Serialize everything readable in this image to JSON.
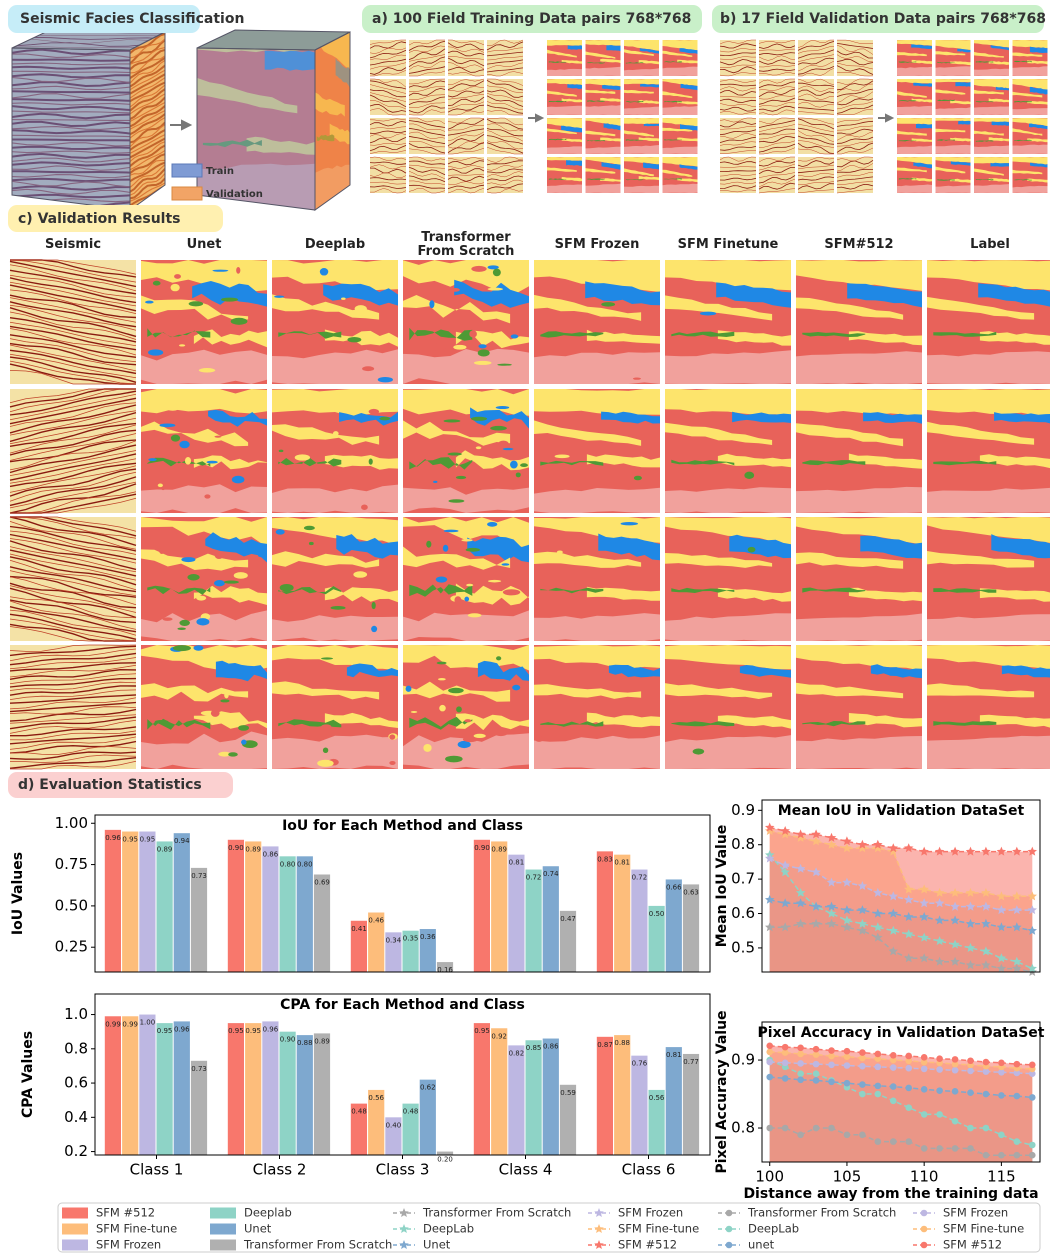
{
  "panels": {
    "facies": "Seismic Facies Classification",
    "training": "a) 100 Field Training Data pairs 768*768",
    "validation": "b) 17  Field Validation Data pairs 768*768",
    "results": "c) Validation Results",
    "statistics": "d) Evaluation Statistics"
  },
  "cube_legend": {
    "train": "Train",
    "validation": "Validation"
  },
  "columns": [
    "Seismic",
    "Unet",
    "Deeplab",
    "Transformer From Scratch",
    "SFM Frozen",
    "SFM Finetune",
    "SFM#512",
    "Label"
  ],
  "chart_data": [
    {
      "type": "bar",
      "title": "IoU for Each Method and Class",
      "ylabel": "IoU Values",
      "ylim": [
        0.1,
        1.05
      ],
      "yticks": [
        0.25,
        {
          "value": 0.5,
          "label": "0.50"
        },
        0.75,
        {
          "value": 1,
          "label": "1.00"
        }
      ],
      "series": [
        {
          "name": "SFM #512",
          "color": "#f8776c",
          "values": [
            0.96,
            0.9,
            0.41,
            0.9,
            0.83
          ],
          "value_labels": [
            "0.96",
            "0.90",
            "0.41",
            "0.90",
            "0.83"
          ]
        },
        {
          "name": "SFM Fine-tune",
          "color": "#fdbd7b",
          "values": [
            0.95,
            0.89,
            0.46,
            0.89,
            0.81
          ],
          "value_labels": [
            "0.95",
            "0.89",
            "0.46",
            "0.89",
            "0.81"
          ]
        },
        {
          "name": "SFM Frozen",
          "color": "#bdb7e2",
          "values": [
            0.95,
            0.86,
            0.34,
            0.81,
            0.72
          ],
          "value_labels": [
            "0.95",
            "0.86",
            "0.34",
            "0.81",
            "0.72"
          ]
        },
        {
          "name": "Deeplab",
          "color": "#8ed3c6",
          "values": [
            0.89,
            0.8,
            0.35,
            0.72,
            0.5
          ],
          "value_labels": [
            "0.89",
            "0.80",
            "0.35",
            "0.72",
            "0.50"
          ]
        },
        {
          "name": "Unet",
          "color": "#7ea8cf",
          "values": [
            0.94,
            0.8,
            0.36,
            0.74,
            0.66
          ],
          "value_labels": [
            "0.94",
            "0.80",
            "0.36",
            "0.74",
            "0.66"
          ]
        },
        {
          "name": "Transformer From Scratch",
          "color": "#b0b0b0",
          "values": [
            0.73,
            0.69,
            0.16,
            0.47,
            0.63
          ],
          "value_labels": [
            "0.73",
            "0.69",
            "0.16",
            "0.47",
            "0.63"
          ]
        }
      ]
    },
    {
      "type": "bar",
      "title": "CPA for Each Method and Class",
      "ylabel": "CPA Values",
      "ylim": [
        0.18,
        1.12
      ],
      "yticks": [
        0.2,
        0.4,
        0.6,
        0.8,
        {
          "value": 1,
          "label": "1.0"
        }
      ],
      "categories": [
        "Class 1",
        "Class 2",
        "Class 3",
        "Class 4",
        "Class 6"
      ],
      "series": [
        {
          "color": "#f8776c",
          "values": [
            0.99,
            0.95,
            0.48,
            0.95,
            0.87
          ],
          "value_labels": [
            "0.99",
            "0.95",
            "0.48",
            "0.95",
            "0.87"
          ]
        },
        {
          "color": "#fdbd7b",
          "values": [
            0.99,
            0.95,
            0.56,
            0.92,
            0.88
          ],
          "value_labels": [
            "0.99",
            "0.95",
            "0.56",
            "0.92",
            "0.88"
          ]
        },
        {
          "color": "#bdb7e2",
          "values": [
            1,
            0.96,
            0.4,
            0.82,
            0.76
          ],
          "value_labels": [
            "1.00",
            "0.96",
            "0.40",
            "0.82",
            "0.76"
          ]
        },
        {
          "color": "#8ed3c6",
          "values": [
            0.95,
            0.9,
            0.48,
            0.85,
            0.56
          ],
          "value_labels": [
            "0.95",
            "0.90",
            "0.48",
            "0.85",
            "0.56"
          ]
        },
        {
          "color": "#7ea8cf",
          "values": [
            0.96,
            0.88,
            0.62,
            0.86,
            0.81
          ],
          "value_labels": [
            "0.96",
            "0.88",
            "0.62",
            "0.86",
            "0.81"
          ]
        },
        {
          "color": "#b0b0b0",
          "values": [
            0.73,
            0.89,
            0.2,
            0.59,
            0.77
          ],
          "value_labels": [
            "0.73",
            "0.89",
            "0.20",
            "0.59",
            "0.77"
          ]
        }
      ]
    },
    {
      "type": "line",
      "title": "Mean IoU in Validation DataSet",
      "ylabel": "Mean IoU Value",
      "marker": "star",
      "x": [
        100,
        101,
        102,
        103,
        104,
        105,
        106,
        107,
        108,
        109,
        110,
        111,
        112,
        113,
        114,
        115,
        116,
        117
      ],
      "xlim": [
        99.5,
        117.5
      ],
      "ylim": [
        0.43,
        0.93
      ],
      "yticks": [
        0.5,
        0.6,
        0.7,
        0.8,
        0.9
      ],
      "series": [
        {
          "name": "Transformer From Scratch",
          "color": "#a8a8a8",
          "values": [
            0.56,
            0.56,
            0.57,
            0.57,
            0.57,
            0.56,
            0.55,
            0.53,
            0.49,
            0.47,
            0.47,
            0.46,
            0.46,
            0.45,
            0.45,
            0.44,
            0.44,
            0.43
          ]
        },
        {
          "name": "DeepLab",
          "color": "#8ed3c6",
          "values": [
            0.77,
            0.72,
            0.66,
            0.62,
            0.6,
            0.58,
            0.57,
            0.56,
            0.55,
            0.54,
            0.53,
            0.52,
            0.51,
            0.5,
            0.49,
            0.47,
            0.46,
            0.44
          ]
        },
        {
          "name": "Unet",
          "color": "#7ea8cf",
          "values": [
            0.64,
            0.63,
            0.63,
            0.62,
            0.62,
            0.61,
            0.61,
            0.6,
            0.6,
            0.59,
            0.59,
            0.58,
            0.58,
            0.57,
            0.57,
            0.56,
            0.56,
            0.55
          ]
        },
        {
          "name": "SFM Frozen",
          "color": "#bdb7e2",
          "values": [
            0.76,
            0.74,
            0.73,
            0.72,
            0.69,
            0.69,
            0.68,
            0.66,
            0.65,
            0.64,
            0.63,
            0.63,
            0.62,
            0.62,
            0.62,
            0.61,
            0.61,
            0.61
          ]
        },
        {
          "name": "SFM Fine-tune",
          "color": "#fdbd7b",
          "values": [
            0.84,
            0.83,
            0.82,
            0.81,
            0.8,
            0.79,
            0.79,
            0.79,
            0.78,
            0.67,
            0.67,
            0.66,
            0.66,
            0.66,
            0.66,
            0.65,
            0.65,
            0.65
          ]
        },
        {
          "name": "SFM #512",
          "color": "#f8776c",
          "values": [
            0.85,
            0.84,
            0.83,
            0.83,
            0.82,
            0.81,
            0.8,
            0.8,
            0.79,
            0.79,
            0.78,
            0.78,
            0.78,
            0.78,
            0.78,
            0.78,
            0.78,
            0.78
          ]
        }
      ]
    },
    {
      "type": "line",
      "title": "Pixel Accuracy in Validation DataSet",
      "ylabel": "Pixel Accuracy Value",
      "xlabel": "Distance away from the training data",
      "marker": "circle",
      "x": [
        100,
        101,
        102,
        103,
        104,
        105,
        106,
        107,
        108,
        109,
        110,
        111,
        112,
        113,
        114,
        115,
        116,
        117
      ],
      "xlim": [
        99.5,
        117.5
      ],
      "xticks": [
        100,
        105,
        110,
        115
      ],
      "ylim": [
        0.75,
        0.956
      ],
      "yticks": [
        0.8,
        0.9
      ],
      "series": [
        {
          "name": "Transformer From Scratch",
          "color": "#a8a8a8",
          "values": [
            0.8,
            0.8,
            0.79,
            0.8,
            0.8,
            0.79,
            0.79,
            0.78,
            0.78,
            0.78,
            0.77,
            0.77,
            0.77,
            0.77,
            0.76,
            0.76,
            0.76,
            0.76
          ]
        },
        {
          "name": "DeepLab",
          "color": "#8ed3c6",
          "values": [
            0.9,
            0.89,
            0.88,
            0.88,
            0.87,
            0.86,
            0.85,
            0.85,
            0.84,
            0.83,
            0.82,
            0.82,
            0.81,
            0.8,
            0.8,
            0.79,
            0.78,
            0.775
          ]
        },
        {
          "name": "unet",
          "color": "#7ea8cf",
          "values": [
            0.875,
            0.873,
            0.871,
            0.87,
            0.868,
            0.866,
            0.864,
            0.862,
            0.861,
            0.859,
            0.857,
            0.855,
            0.854,
            0.852,
            0.85,
            0.848,
            0.847,
            0.845
          ]
        },
        {
          "name": "SFM Frozen",
          "color": "#bdb7e2",
          "values": [
            0.897,
            0.896,
            0.895,
            0.894,
            0.893,
            0.892,
            0.891,
            0.89,
            0.889,
            0.888,
            0.887,
            0.886,
            0.885,
            0.884,
            0.883,
            0.882,
            0.881,
            0.88
          ]
        },
        {
          "name": "SFM Fine-tune",
          "color": "#fdbd7b",
          "values": [
            0.912,
            0.911,
            0.909,
            0.908,
            0.906,
            0.905,
            0.903,
            0.902,
            0.9,
            0.899,
            0.897,
            0.896,
            0.894,
            0.893,
            0.891,
            0.89,
            0.888,
            0.887
          ]
        },
        {
          "name": "SFM #512",
          "color": "#f8776c",
          "values": [
            0.921,
            0.919,
            0.918,
            0.916,
            0.914,
            0.913,
            0.911,
            0.909,
            0.907,
            0.906,
            0.904,
            0.902,
            0.901,
            0.899,
            0.897,
            0.896,
            0.894,
            0.893
          ]
        }
      ]
    }
  ]
}
